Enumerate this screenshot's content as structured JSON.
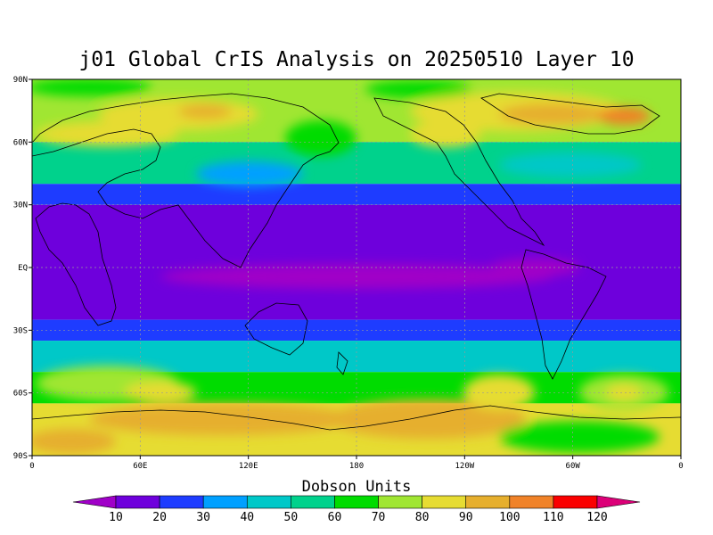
{
  "title": "j01 Global CrIS Analysis on 20250510 Layer 10",
  "lat_labels": [
    "90N",
    "60N",
    "30N",
    "EQ",
    "30S",
    "60S",
    "90S"
  ],
  "lon_labels": [
    "0",
    "60E",
    "120E",
    "180",
    "120W",
    "60W",
    "0"
  ],
  "colorbar": {
    "title": "Dobson Units",
    "levels": [
      10,
      20,
      30,
      40,
      50,
      60,
      70,
      80,
      90,
      100,
      110,
      120
    ],
    "colors": [
      "#a000c8",
      "#6e00dc",
      "#1e3cff",
      "#00a0ff",
      "#00c8c8",
      "#00d28c",
      "#00dc00",
      "#a0e632",
      "#e6dc32",
      "#e6af2d",
      "#f08228",
      "#fa0000",
      "#dc0078"
    ]
  },
  "field_bands": [
    {
      "lat_range": [
        60,
        90
      ],
      "color": "#a0e632"
    },
    {
      "lat_range": [
        40,
        60
      ],
      "color": "#00d28c"
    },
    {
      "lat_range": [
        30,
        40
      ],
      "color": "#1e3cff"
    },
    {
      "lat_range": [
        -25,
        30
      ],
      "color": "#6e00dc"
    },
    {
      "lat_range": [
        -35,
        -25
      ],
      "color": "#1e3cff"
    },
    {
      "lat_range": [
        -50,
        -35
      ],
      "color": "#00c8c8"
    },
    {
      "lat_range": [
        -65,
        -50
      ],
      "color": "#00dc00"
    },
    {
      "lat_range": [
        -90,
        -65
      ],
      "color": "#e6dc32"
    }
  ]
}
